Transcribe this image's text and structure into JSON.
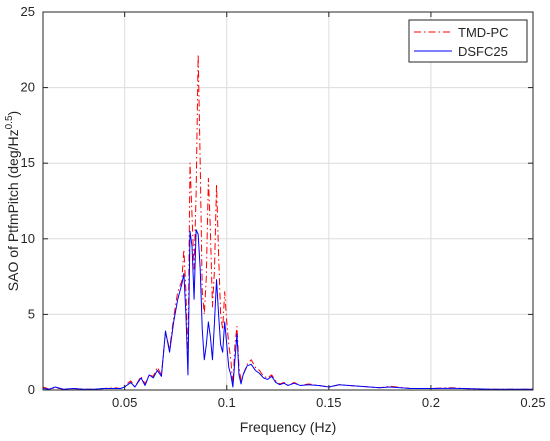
{
  "chart_data": {
    "type": "line",
    "title": "",
    "xlabel": "Frequency (Hz)",
    "ylabel_main": "SAO of PtfmPitch (deg/Hz",
    "ylabel_sup": "0.5",
    "ylabel_close": ")",
    "xlim": [
      0.01,
      0.25
    ],
    "ylim": [
      0,
      25
    ],
    "xticks": [
      0.05,
      0.1,
      0.15,
      0.2,
      0.25
    ],
    "xtick_labels": [
      "0.05",
      "0.1",
      "0.15",
      "0.2",
      "0.25"
    ],
    "yticks": [
      0,
      5,
      10,
      15,
      20,
      25
    ],
    "ytick_labels": [
      "0",
      "5",
      "10",
      "15",
      "20",
      "25"
    ],
    "grid": true,
    "legend_position": "top-right",
    "series": [
      {
        "name": "TMD-PC",
        "color": "#ff0000",
        "style": "dash-dot",
        "x": [
          0.01,
          0.013,
          0.016,
          0.02,
          0.025,
          0.03,
          0.035,
          0.04,
          0.045,
          0.048,
          0.05,
          0.053,
          0.055,
          0.058,
          0.06,
          0.062,
          0.064,
          0.066,
          0.068,
          0.07,
          0.072,
          0.074,
          0.076,
          0.078,
          0.079,
          0.08,
          0.081,
          0.082,
          0.083,
          0.084,
          0.085,
          0.086,
          0.087,
          0.088,
          0.089,
          0.09,
          0.091,
          0.092,
          0.093,
          0.094,
          0.095,
          0.096,
          0.097,
          0.098,
          0.099,
          0.1,
          0.101,
          0.102,
          0.103,
          0.104,
          0.105,
          0.106,
          0.107,
          0.108,
          0.11,
          0.112,
          0.114,
          0.116,
          0.118,
          0.12,
          0.122,
          0.124,
          0.126,
          0.128,
          0.13,
          0.133,
          0.136,
          0.14,
          0.145,
          0.15,
          0.155,
          0.16,
          0.165,
          0.17,
          0.175,
          0.18,
          0.19,
          0.2,
          0.21,
          0.22,
          0.23,
          0.24,
          0.25
        ],
        "y": [
          0.2,
          0.05,
          0.15,
          0.05,
          0.1,
          0.05,
          0.05,
          0.1,
          0.15,
          0.1,
          0.3,
          0.6,
          0.2,
          0.9,
          0.4,
          1.0,
          0.9,
          1.5,
          1.0,
          3.8,
          2.7,
          4.8,
          6.5,
          7.2,
          9.3,
          6.5,
          2.0,
          15.0,
          11.5,
          8.0,
          13.0,
          22.2,
          15.0,
          6.5,
          5.0,
          7.5,
          14.0,
          10.5,
          5.5,
          8.0,
          13.6,
          9.0,
          5.0,
          4.0,
          6.5,
          4.5,
          3.0,
          2.0,
          0.3,
          3.0,
          4.2,
          1.5,
          0.6,
          1.0,
          1.7,
          2.0,
          1.5,
          1.3,
          0.9,
          0.8,
          1.0,
          0.6,
          0.4,
          0.5,
          0.3,
          0.5,
          0.3,
          0.4,
          0.3,
          0.2,
          0.35,
          0.3,
          0.25,
          0.2,
          0.15,
          0.25,
          0.1,
          0.1,
          0.15,
          0.08,
          0.05,
          0.05,
          0.05
        ]
      },
      {
        "name": "DSFC25",
        "color": "#0000ff",
        "style": "solid",
        "x": [
          0.01,
          0.013,
          0.016,
          0.02,
          0.025,
          0.03,
          0.035,
          0.04,
          0.045,
          0.048,
          0.05,
          0.053,
          0.055,
          0.058,
          0.06,
          0.062,
          0.064,
          0.066,
          0.068,
          0.07,
          0.072,
          0.074,
          0.076,
          0.078,
          0.079,
          0.08,
          0.081,
          0.082,
          0.083,
          0.084,
          0.085,
          0.086,
          0.087,
          0.088,
          0.089,
          0.09,
          0.091,
          0.092,
          0.093,
          0.094,
          0.095,
          0.096,
          0.097,
          0.098,
          0.099,
          0.1,
          0.101,
          0.102,
          0.103,
          0.104,
          0.105,
          0.106,
          0.107,
          0.108,
          0.11,
          0.112,
          0.114,
          0.116,
          0.118,
          0.12,
          0.122,
          0.124,
          0.126,
          0.128,
          0.13,
          0.133,
          0.136,
          0.14,
          0.145,
          0.15,
          0.155,
          0.16,
          0.165,
          0.17,
          0.175,
          0.18,
          0.19,
          0.2,
          0.21,
          0.22,
          0.23,
          0.24,
          0.25
        ],
        "y": [
          0.1,
          0.05,
          0.2,
          0.05,
          0.1,
          0.05,
          0.05,
          0.1,
          0.1,
          0.1,
          0.2,
          0.5,
          0.2,
          0.8,
          0.3,
          1.0,
          0.8,
          1.3,
          0.9,
          3.9,
          2.5,
          4.5,
          6.0,
          7.0,
          7.7,
          5.0,
          1.0,
          10.5,
          9.5,
          6.0,
          10.6,
          10.3,
          8.0,
          4.0,
          2.0,
          3.0,
          4.5,
          3.5,
          2.0,
          4.5,
          7.3,
          5.0,
          3.0,
          2.5,
          4.5,
          3.0,
          1.5,
          1.0,
          0.2,
          2.0,
          3.7,
          1.0,
          0.4,
          1.0,
          1.6,
          1.7,
          1.3,
          1.1,
          0.8,
          0.7,
          0.9,
          0.5,
          0.35,
          0.45,
          0.3,
          0.45,
          0.3,
          0.35,
          0.3,
          0.2,
          0.35,
          0.3,
          0.25,
          0.2,
          0.15,
          0.2,
          0.1,
          0.1,
          0.12,
          0.08,
          0.05,
          0.05,
          0.05
        ]
      }
    ]
  }
}
